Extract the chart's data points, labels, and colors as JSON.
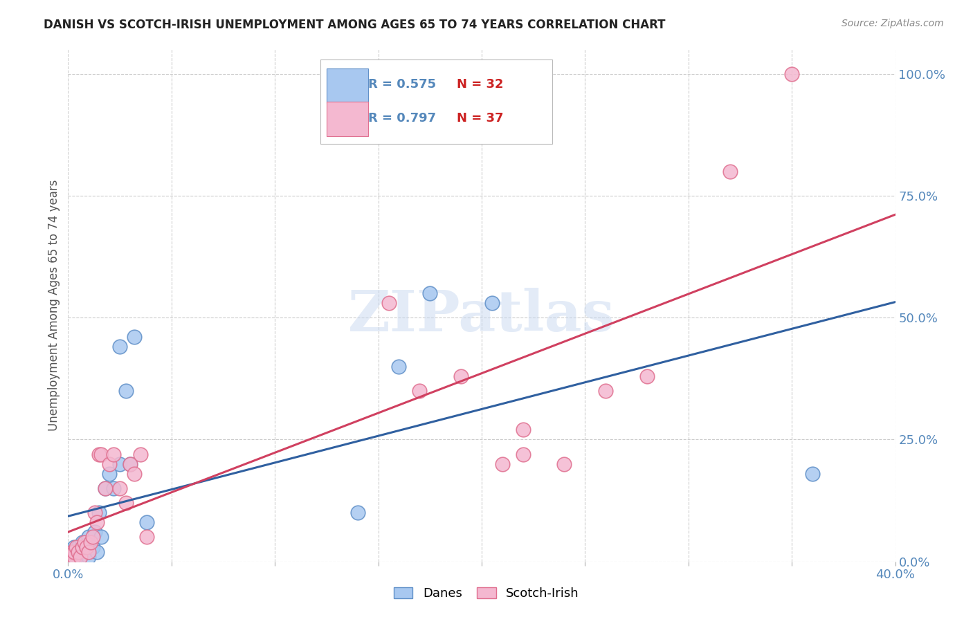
{
  "title": "DANISH VS SCOTCH-IRISH UNEMPLOYMENT AMONG AGES 65 TO 74 YEARS CORRELATION CHART",
  "source": "Source: ZipAtlas.com",
  "ylabel": "Unemployment Among Ages 65 to 74 years",
  "xlim": [
    0.0,
    0.4
  ],
  "ylim": [
    0.0,
    1.05
  ],
  "danes_color": "#A8C8F0",
  "scotch_color": "#F4B8D0",
  "danes_edge_color": "#6090C8",
  "scotch_edge_color": "#E07090",
  "danes_line_color": "#3060A0",
  "scotch_line_color": "#D04060",
  "danes_R": 0.575,
  "danes_N": 32,
  "scotch_R": 0.797,
  "scotch_N": 37,
  "background_color": "#FFFFFF",
  "grid_color": "#CCCCCC",
  "title_color": "#222222",
  "axis_tick_color": "#5588BB",
  "r_text_color": "#5588BB",
  "n_text_color": "#CC2222",
  "danes_x": [
    0.001,
    0.002,
    0.003,
    0.003,
    0.004,
    0.005,
    0.005,
    0.006,
    0.007,
    0.008,
    0.009,
    0.01,
    0.01,
    0.012,
    0.013,
    0.014,
    0.015,
    0.016,
    0.018,
    0.02,
    0.022,
    0.025,
    0.025,
    0.028,
    0.03,
    0.032,
    0.038,
    0.14,
    0.16,
    0.175,
    0.205,
    0.36
  ],
  "danes_y": [
    0.01,
    0.02,
    0.01,
    0.03,
    0.01,
    0.02,
    0.03,
    0.02,
    0.04,
    0.02,
    0.03,
    0.01,
    0.05,
    0.03,
    0.06,
    0.02,
    0.1,
    0.05,
    0.15,
    0.18,
    0.15,
    0.2,
    0.44,
    0.35,
    0.2,
    0.46,
    0.08,
    0.1,
    0.4,
    0.55,
    0.53,
    0.18
  ],
  "scotch_x": [
    0.001,
    0.002,
    0.003,
    0.003,
    0.004,
    0.005,
    0.006,
    0.007,
    0.008,
    0.009,
    0.01,
    0.011,
    0.012,
    0.013,
    0.014,
    0.015,
    0.016,
    0.018,
    0.02,
    0.022,
    0.025,
    0.028,
    0.03,
    0.032,
    0.035,
    0.038,
    0.155,
    0.17,
    0.19,
    0.21,
    0.22,
    0.24,
    0.26,
    0.28,
    0.32,
    0.35,
    0.22
  ],
  "scotch_y": [
    0.01,
    0.02,
    0.01,
    0.02,
    0.03,
    0.02,
    0.01,
    0.03,
    0.04,
    0.03,
    0.02,
    0.04,
    0.05,
    0.1,
    0.08,
    0.22,
    0.22,
    0.15,
    0.2,
    0.22,
    0.15,
    0.12,
    0.2,
    0.18,
    0.22,
    0.05,
    0.53,
    0.35,
    0.38,
    0.2,
    0.22,
    0.2,
    0.35,
    0.38,
    0.8,
    1.0,
    0.27
  ],
  "watermark": "ZIPatlas",
  "x_ticks": [
    0.0,
    0.05,
    0.1,
    0.15,
    0.2,
    0.25,
    0.3,
    0.35,
    0.4
  ],
  "y_ticks": [
    0.0,
    0.25,
    0.5,
    0.75,
    1.0
  ]
}
